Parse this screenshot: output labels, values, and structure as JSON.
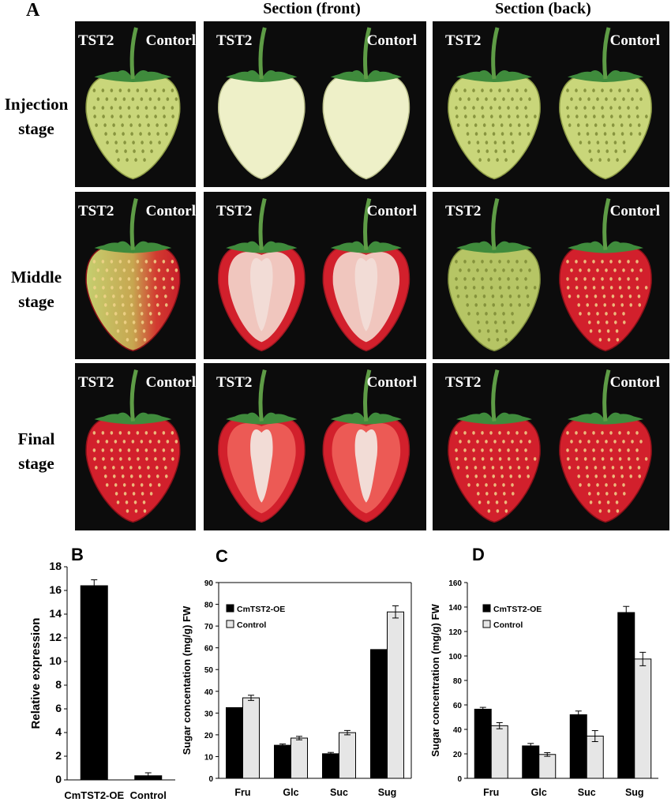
{
  "panel_a": {
    "letter": "A",
    "column_headers": [
      "Section (front)",
      "Section (back)"
    ],
    "rows": [
      {
        "label_line1": "Injection",
        "label_line2": "stage",
        "stage": "injection"
      },
      {
        "label_line1": "Middle",
        "label_line2": "stage",
        "stage": "middle"
      },
      {
        "label_line1": "Final",
        "label_line2": "stage",
        "stage": "final"
      }
    ],
    "left_label": "TST2",
    "right_label": "Contorl",
    "colors": {
      "background": "#0c0c0c",
      "unripe": "#c9d67a",
      "unripe_section": "#eef0c8",
      "ripe": "#d2202c",
      "ripe_section_flesh": "#f2dcd6",
      "leaf": "#3f8b3c"
    }
  },
  "chart_data": [
    {
      "panel": "B",
      "type": "bar",
      "categories": [
        "CmTST2-OE",
        "Control"
      ],
      "values": [
        16.4,
        0.35
      ],
      "errors": [
        0.5,
        0.25
      ],
      "ylabel": "Relative expression",
      "xlabel": "",
      "ylim": [
        0,
        18
      ],
      "yticks": [
        0,
        2,
        4,
        6,
        8,
        10,
        12,
        14,
        16,
        18
      ],
      "colors": [
        "#000000"
      ]
    },
    {
      "panel": "C",
      "type": "bar",
      "categories": [
        "Fru",
        "Glc",
        "Suc",
        "Sug"
      ],
      "series": [
        {
          "name": "CmTST2-OE",
          "values": [
            32.5,
            15.2,
            11.3,
            59.2
          ],
          "errors": [
            0.0,
            0.6,
            0.6,
            0.0
          ],
          "color": "#000000"
        },
        {
          "name": "Control",
          "values": [
            37.0,
            18.5,
            21.0,
            76.5
          ],
          "errors": [
            1.2,
            0.8,
            1.0,
            2.8
          ],
          "color": "#e6e6e6"
        }
      ],
      "ylabel": "Sugar concentation (mg/g) FW",
      "xlabel": "",
      "ylim": [
        0,
        90
      ],
      "yticks": [
        0,
        10,
        20,
        30,
        40,
        50,
        60,
        70,
        80,
        90
      ],
      "legend": "top-left"
    },
    {
      "panel": "D",
      "type": "bar",
      "categories": [
        "Fru",
        "Glc",
        "Suc",
        "Sug"
      ],
      "series": [
        {
          "name": "CmTST2-OE",
          "values": [
            56.5,
            26.5,
            52.0,
            135.5
          ],
          "errors": [
            1.5,
            2.0,
            3.0,
            5.0
          ],
          "color": "#000000"
        },
        {
          "name": "Control",
          "values": [
            43.0,
            19.5,
            34.5,
            97.5
          ],
          "errors": [
            2.5,
            1.5,
            4.5,
            5.5
          ],
          "color": "#e6e6e6"
        }
      ],
      "ylabel": "Sugar concentration (mg/g) FW",
      "xlabel": "",
      "ylim": [
        0,
        160
      ],
      "yticks": [
        0,
        20,
        40,
        60,
        80,
        100,
        120,
        140,
        160
      ],
      "legend": "top-left"
    }
  ]
}
